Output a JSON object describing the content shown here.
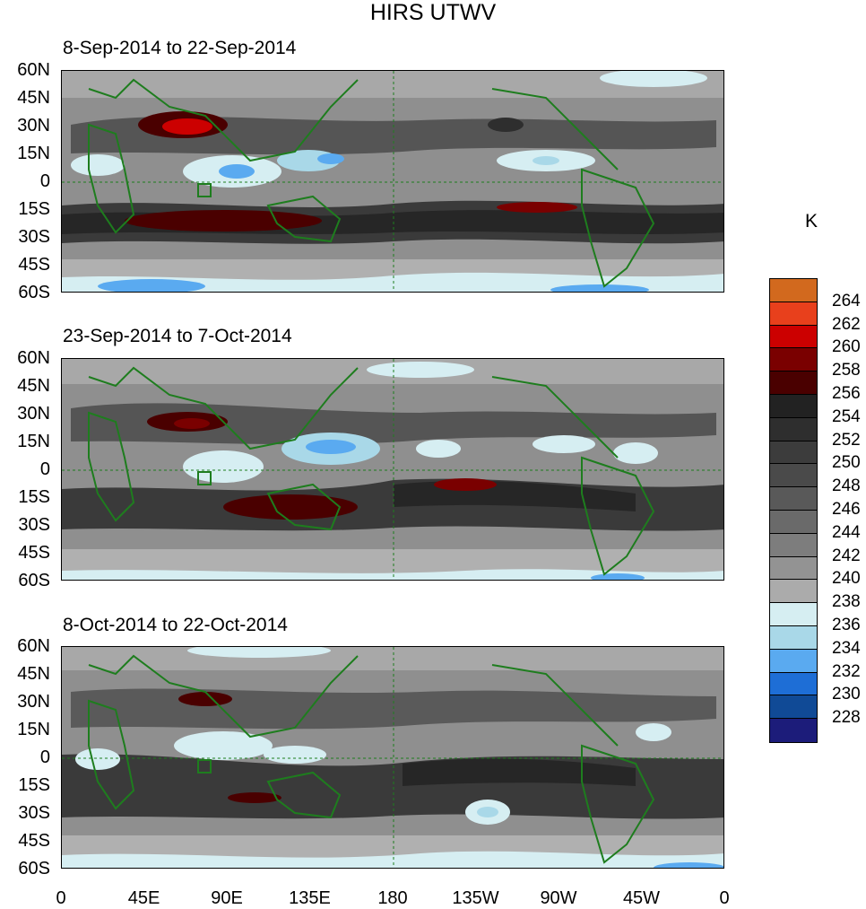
{
  "title": "HIRS UTWV",
  "panels": [
    {
      "title": "8-Sep-2014 to 22-Sep-2014"
    },
    {
      "title": "23-Sep-2014 to 7-Oct-2014"
    },
    {
      "title": "8-Oct-2014 to 22-Oct-2014"
    }
  ],
  "lat_labels": [
    "60N",
    "45N",
    "30N",
    "15N",
    "0",
    "15S",
    "30S",
    "45S",
    "60S"
  ],
  "lon_labels": [
    "0",
    "45E",
    "90E",
    "135E",
    "180",
    "135W",
    "90W",
    "45W",
    "0"
  ],
  "colorbar": {
    "unit": "K",
    "labels": [
      "264",
      "262",
      "260",
      "258",
      "256",
      "254",
      "252",
      "250",
      "248",
      "246",
      "244",
      "242",
      "240",
      "238",
      "236",
      "234",
      "232",
      "230",
      "228"
    ],
    "colors": [
      "#d2691e",
      "#e8401c",
      "#cc0000",
      "#7a0000",
      "#4a0000",
      "#222222",
      "#2e2e2e",
      "#3c3c3c",
      "#4a4a4a",
      "#595959",
      "#6a6a6a",
      "#7d7d7d",
      "#939393",
      "#ababab",
      "#d6eef2",
      "#a9d8e8",
      "#5aaaf0",
      "#1e6ed6",
      "#104a96",
      "#1c1c7a"
    ]
  },
  "colors": {
    "coast": "#1e7d1e",
    "map_bg": "#8c8c8c"
  }
}
